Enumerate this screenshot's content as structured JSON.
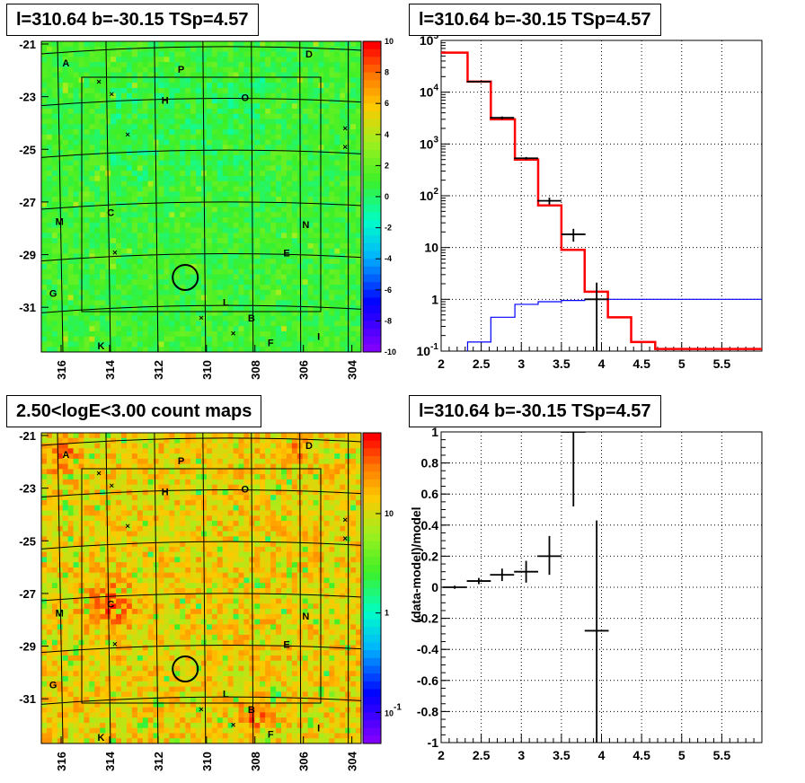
{
  "panels": {
    "tl_title": "l=310.64 b=-30.15 TSp=4.57",
    "tr_title": "l=310.64 b=-30.15 TSp=4.57",
    "bl_title": "2.50<logE<3.00 count maps",
    "br_title": "l=310.64 b=-30.15 TSp=4.57"
  },
  "colors": {
    "model": "#ff0000",
    "data": "#000000",
    "background_model": "#0000ff"
  },
  "chart_data": [
    {
      "type": "heatmap",
      "name": "residual significance map",
      "x_ticks": [
        "316",
        "314",
        "312",
        "310",
        "308",
        "306",
        "304"
      ],
      "y_ticks": [
        "-21",
        "-23",
        "-25",
        "-27",
        "-29",
        "-31"
      ],
      "colorbar": {
        "ticks": [
          "10",
          "8",
          "6",
          "4",
          "2",
          "0",
          "-2",
          "-4",
          "-6",
          "-8",
          "-10"
        ],
        "range": [
          -10,
          10
        ]
      },
      "source_labels": [
        "A",
        "P",
        "D",
        "H",
        "O",
        "M",
        "C",
        "N",
        "E",
        "G",
        "L",
        "B",
        "K",
        "F",
        "I"
      ],
      "dominant_color": "green"
    },
    {
      "type": "line",
      "name": "spectrum",
      "xlim": [
        2,
        6
      ],
      "ylim": [
        0.1,
        100000
      ],
      "yscale": "log",
      "x_ticks": [
        "2",
        "2.5",
        "3",
        "3.5",
        "4",
        "4.5",
        "5",
        "5.5"
      ],
      "y_ticks": [
        "10^-1",
        "1",
        "10",
        "10^2",
        "10^3",
        "10^4",
        "10^5"
      ],
      "grid": true,
      "series": [
        {
          "type": "step",
          "edges": [
            2.0,
            2.33,
            2.62,
            2.92,
            3.21,
            3.5,
            3.79,
            4.08,
            4.37,
            4.67,
            6.0
          ],
          "values": [
            58000,
            16000,
            3000,
            500,
            65,
            9,
            1.4,
            0.45,
            0.15,
            0.11
          ]
        },
        {
          "type": "step",
          "edges": [
            2.0,
            2.33,
            2.62,
            2.92,
            3.21,
            3.5,
            3.79,
            4.08,
            6.0
          ],
          "values": [
            0.08,
            0.15,
            0.45,
            0.8,
            0.9,
            0.95,
            1.0,
            1.0
          ]
        },
        {
          "type": "errorbar",
          "points": [
            {
              "x": 2.47,
              "y": 16000,
              "xerr": 0.15,
              "ylo": 15500,
              "yhi": 16500
            },
            {
              "x": 2.76,
              "y": 3200,
              "xerr": 0.15,
              "ylo": 3000,
              "yhi": 3400
            },
            {
              "x": 3.06,
              "y": 530,
              "xerr": 0.15,
              "ylo": 500,
              "yhi": 560
            },
            {
              "x": 3.35,
              "y": 80,
              "xerr": 0.15,
              "ylo": 68,
              "yhi": 92
            },
            {
              "x": 3.65,
              "y": 18,
              "xerr": 0.15,
              "ylo": 13,
              "yhi": 23
            },
            {
              "x": 3.94,
              "y": 1,
              "xerr": 0.15,
              "ylo": 0.1,
              "yhi": 2.1
            }
          ]
        }
      ]
    },
    {
      "type": "heatmap",
      "name": "count map",
      "x_ticks": [
        "316",
        "314",
        "312",
        "310",
        "308",
        "306",
        "304"
      ],
      "y_ticks": [
        "-21",
        "-23",
        "-25",
        "-27",
        "-29",
        "-31"
      ],
      "colorbar": {
        "ticks": [
          "10",
          "1",
          "10^-1"
        ],
        "scale": "log"
      },
      "source_labels": [
        "A",
        "P",
        "D",
        "H",
        "O",
        "M",
        "C",
        "N",
        "E",
        "G",
        "L",
        "B",
        "K",
        "F",
        "I"
      ],
      "dominant_color": "orange"
    },
    {
      "type": "scatter",
      "name": "residuals",
      "ylabel": "(data-model)/model",
      "xlim": [
        2,
        6
      ],
      "ylim": [
        -1,
        1
      ],
      "x_ticks": [
        "2",
        "2.5",
        "3",
        "3.5",
        "4",
        "4.5",
        "5",
        "5.5"
      ],
      "y_ticks": [
        "1",
        "0.8",
        "0.6",
        "0.4",
        "0.2",
        "0",
        "-0.2",
        "-0.4",
        "-0.6",
        "-0.8",
        "-1"
      ],
      "grid": true,
      "points": [
        {
          "x": 2.17,
          "y": 0.0,
          "xerr": 0.15,
          "ylo": -0.01,
          "yhi": 0.01
        },
        {
          "x": 2.47,
          "y": 0.04,
          "xerr": 0.15,
          "ylo": 0.02,
          "yhi": 0.06
        },
        {
          "x": 2.76,
          "y": 0.08,
          "xerr": 0.15,
          "ylo": 0.04,
          "yhi": 0.12
        },
        {
          "x": 3.06,
          "y": 0.1,
          "xerr": 0.15,
          "ylo": 0.03,
          "yhi": 0.17
        },
        {
          "x": 3.35,
          "y": 0.2,
          "xerr": 0.15,
          "ylo": 0.08,
          "yhi": 0.33
        },
        {
          "x": 3.65,
          "y": 1.0,
          "xerr": 0.15,
          "ylo": 0.52,
          "yhi": 1.0
        },
        {
          "x": 3.94,
          "y": -0.28,
          "xerr": 0.15,
          "ylo": -1.0,
          "yhi": 0.43
        }
      ]
    }
  ]
}
